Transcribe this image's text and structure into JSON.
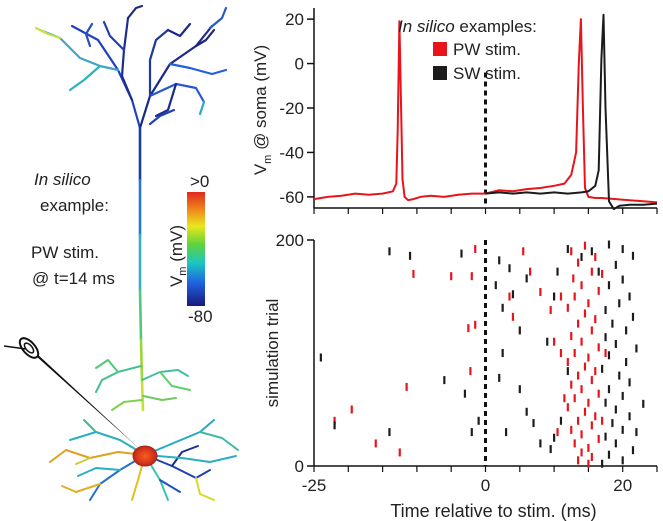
{
  "left_panel": {
    "label_italic": "In silico",
    "label_example": "example:",
    "label_stim_1": "PW stim.",
    "label_stim_2": "@ t=14 ms",
    "colorbar": {
      "title": "V",
      "title_sub": "m",
      "title_unit": " (mV)",
      "max_label": ">0",
      "min_label": "-80"
    }
  },
  "chart_data": [
    {
      "type": "line",
      "title": "",
      "legend": {
        "title_italic": "In silico",
        "title_rest": " examples:",
        "placement": "top-right",
        "entries": [
          {
            "name": "PW stim.",
            "color": "#e8141c"
          },
          {
            "name": "SW stim.",
            "color": "#1c1c1c"
          }
        ]
      },
      "ylabel": {
        "main": "V",
        "sub": "m",
        "rest": " @ soma (mV)"
      },
      "ylim": [
        -65,
        25
      ],
      "xlim": [
        -25,
        25
      ],
      "yticks": [
        "20",
        "0",
        "-20",
        "-40",
        "-60"
      ],
      "stim_marker_x": 0,
      "series": [
        {
          "name": "PW stim.",
          "color": "#e8141c",
          "x": [
            -25,
            -23,
            -21,
            -19,
            -17,
            -15,
            -13.5,
            -13,
            -12.8,
            -12.55,
            -12.3,
            -12.1,
            -11.8,
            -11.3,
            -10.5,
            -9.5,
            -8,
            -6,
            -4,
            -2,
            0,
            2,
            4,
            6,
            8,
            10,
            11.5,
            12.5,
            13.2,
            13.6,
            13.9,
            14.2,
            14.5,
            15,
            16,
            17,
            19,
            21,
            23,
            25
          ],
          "y": [
            -61,
            -60,
            -59.5,
            -58.5,
            -59,
            -58.5,
            -57.5,
            -54,
            -30,
            19,
            -20,
            -52,
            -60,
            -61.5,
            -61,
            -60,
            -59.5,
            -60,
            -59,
            -58.5,
            -58.5,
            -57,
            -57.5,
            -56.5,
            -56,
            -55,
            -54,
            -50,
            -40,
            0,
            20,
            -20,
            -56,
            -60,
            -60.5,
            -60.5,
            -61,
            -61.5,
            -62,
            -62.5
          ]
        },
        {
          "name": "SW stim.",
          "color": "#1c1c1c",
          "x": [
            0,
            2,
            4,
            6,
            8,
            10,
            12,
            14,
            15,
            16,
            16.5,
            16.9,
            17.2,
            17.5,
            18,
            18.7,
            19.5,
            21,
            23,
            25
          ],
          "y": [
            -58.5,
            -58,
            -58.5,
            -58,
            -58.5,
            -58,
            -58.5,
            -58,
            -57.5,
            -55,
            -48,
            2,
            22,
            -20,
            -62,
            -65.5,
            -64,
            -63.5,
            -63.5,
            -63
          ]
        }
      ]
    },
    {
      "type": "scatter",
      "marker": "raster-tick",
      "ylabel": "simulation  trial",
      "xlabel": "Time relative to stim. (ms)",
      "xlim": [
        -25,
        25
      ],
      "ylim": [
        0,
        200
      ],
      "xticks": [
        "-25",
        "0",
        "20"
      ],
      "yticks": [
        "200",
        "0"
      ],
      "stim_marker_x": 0,
      "series": [
        {
          "name": "PW stim.",
          "color": "#e8141c",
          "points": [
            [
              -1.5,
              192
            ],
            [
              -10.5,
              170
            ],
            [
              -5,
              168
            ],
            [
              -2,
              168
            ],
            [
              -2.5,
              122
            ],
            [
              -1.5,
              125
            ],
            [
              -2.2,
              84
            ],
            [
              -11.5,
              70
            ],
            [
              -19.5,
              50
            ],
            [
              -22,
              40
            ],
            [
              -16,
              20
            ],
            [
              -12.5,
              12
            ],
            [
              5.5,
              190
            ],
            [
              6.5,
              172
            ],
            [
              8,
              154
            ],
            [
              3.5,
              150
            ],
            [
              9.5,
              138
            ],
            [
              4,
              132
            ],
            [
              10,
              110
            ],
            [
              11,
              100
            ],
            [
              12.5,
              190
            ],
            [
              14.5,
              195
            ],
            [
              16,
              185
            ],
            [
              13.5,
              180
            ],
            [
              15.5,
              172
            ],
            [
              12.8,
              166
            ],
            [
              14,
              160
            ],
            [
              16.5,
              155
            ],
            [
              13,
              150
            ],
            [
              15,
              144
            ],
            [
              12,
              140
            ],
            [
              14.5,
              135
            ],
            [
              16,
              130
            ],
            [
              13.5,
              126
            ],
            [
              15.5,
              120
            ],
            [
              12.5,
              115
            ],
            [
              14,
              110
            ],
            [
              16.5,
              105
            ],
            [
              13,
              100
            ],
            [
              15,
              96
            ],
            [
              12,
              92
            ],
            [
              14.5,
              88
            ],
            [
              16,
              84
            ],
            [
              13.5,
              80
            ],
            [
              15.5,
              76
            ],
            [
              12.5,
              72
            ],
            [
              14,
              68
            ],
            [
              16.5,
              64
            ],
            [
              13,
              60
            ],
            [
              15,
              56
            ],
            [
              12,
              52
            ],
            [
              14.5,
              48
            ],
            [
              16,
              44
            ],
            [
              13.5,
              40
            ],
            [
              15.5,
              36
            ],
            [
              12.5,
              32
            ],
            [
              14,
              28
            ],
            [
              16.5,
              24
            ],
            [
              13,
              20
            ],
            [
              15,
              16
            ],
            [
              14,
              12
            ],
            [
              15.5,
              8
            ],
            [
              13.5,
              5
            ],
            [
              15,
              2
            ],
            [
              17,
              40
            ],
            [
              11.5,
              60
            ],
            [
              10.5,
              30
            ],
            [
              17.5,
              100
            ],
            [
              11,
              150
            ],
            [
              17,
              170
            ]
          ]
        },
        {
          "name": "SW stim.",
          "color": "#1c1c1c",
          "points": [
            [
              -14,
              190
            ],
            [
              -11,
              186
            ],
            [
              -24,
              96
            ],
            [
              -6,
              76
            ],
            [
              -3,
              64
            ],
            [
              -22,
              36
            ],
            [
              -14,
              30
            ],
            [
              -2,
              30
            ],
            [
              -1,
              40
            ],
            [
              -3.5,
              188
            ],
            [
              2,
              182
            ],
            [
              3.5,
              175
            ],
            [
              6,
              166
            ],
            [
              1.5,
              160
            ],
            [
              4,
              152
            ],
            [
              2.5,
              140
            ],
            [
              5,
              120
            ],
            [
              2.5,
              100
            ],
            [
              2,
              78
            ],
            [
              5,
              68
            ],
            [
              6,
              48
            ],
            [
              7,
              38
            ],
            [
              3,
              30
            ],
            [
              8,
              20
            ],
            [
              10,
              25
            ],
            [
              9.5,
              15
            ],
            [
              9,
              110
            ],
            [
              10.5,
              172
            ],
            [
              12,
              192
            ],
            [
              14,
              185
            ],
            [
              15.5,
              190
            ],
            [
              18,
              196
            ],
            [
              20,
              192
            ],
            [
              21.5,
              186
            ],
            [
              19,
              178
            ],
            [
              16.5,
              172
            ],
            [
              20,
              165
            ],
            [
              18,
              160
            ],
            [
              21,
              150
            ],
            [
              19.5,
              144
            ],
            [
              17.5,
              138
            ],
            [
              21.5,
              132
            ],
            [
              18.5,
              126
            ],
            [
              20.5,
              120
            ],
            [
              17.5,
              114
            ],
            [
              19,
              108
            ],
            [
              22,
              104
            ],
            [
              18,
              98
            ],
            [
              20.5,
              92
            ],
            [
              17,
              86
            ],
            [
              19.5,
              80
            ],
            [
              21,
              74
            ],
            [
              18,
              68
            ],
            [
              20,
              62
            ],
            [
              17.5,
              56
            ],
            [
              19,
              50
            ],
            [
              21,
              44
            ],
            [
              18.5,
              38
            ],
            [
              20,
              32
            ],
            [
              17.5,
              26
            ],
            [
              19,
              20
            ],
            [
              21.5,
              14
            ],
            [
              18,
              10
            ],
            [
              20,
              5
            ],
            [
              17,
              2
            ],
            [
              22,
              30
            ],
            [
              23,
              55
            ],
            [
              11,
              40
            ],
            [
              12,
              84
            ],
            [
              10,
              150
            ]
          ]
        }
      ]
    }
  ]
}
